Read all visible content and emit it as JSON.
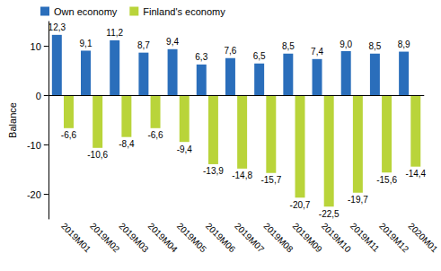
{
  "chart_data": {
    "type": "bar",
    "categories": [
      "2019M01",
      "2019M02",
      "2019M03",
      "2019M04",
      "2019M05",
      "2019M06",
      "2019M07",
      "2019M08",
      "2019M09",
      "2019M10",
      "2019M11",
      "2019M12",
      "2020M01"
    ],
    "series": [
      {
        "name": "Own economy",
        "color": "#2a6ebb",
        "values": [
          12.3,
          9.1,
          11.2,
          8.7,
          9.4,
          6.3,
          7.6,
          6.5,
          8.5,
          7.4,
          9.0,
          8.5,
          8.9
        ],
        "value_labels": [
          "12,3",
          "9,1",
          "11,2",
          "8,7",
          "9,4",
          "6,3",
          "7,6",
          "6,5",
          "8,5",
          "7,4",
          "9,0",
          "8,5",
          "8,9"
        ]
      },
      {
        "name": "Finland's economy",
        "color": "#b9d43a",
        "values": [
          -6.6,
          -10.6,
          -8.4,
          -6.6,
          -9.4,
          -13.9,
          -14.8,
          -15.7,
          -20.7,
          -22.5,
          -19.7,
          -15.6,
          -14.4
        ],
        "value_labels": [
          "-6,6",
          "-10,6",
          "-8,4",
          "-6,6",
          "-9,4",
          "-13,9",
          "-14,8",
          "-15,7",
          "-20,7",
          "-22,5",
          "-19,7",
          "-15,6",
          "-14,4"
        ]
      }
    ],
    "y_label": "Balance",
    "ylim": [
      -25,
      15
    ],
    "yticks": [
      -20,
      -10,
      0,
      10
    ],
    "legend": "top-left",
    "grid": false,
    "data_labels": true
  }
}
